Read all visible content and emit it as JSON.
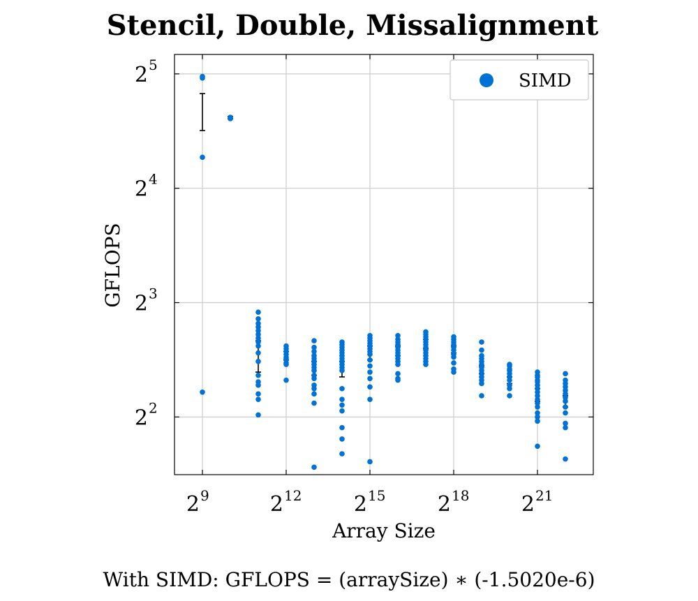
{
  "chart_data": {
    "type": "scatter",
    "title": "Stencil, Double, Missalignment",
    "xlabel": "Array Size",
    "ylabel": "GFLOPS",
    "x_scale": "log2",
    "y_scale": "log2",
    "xlim": [
      256,
      8388608
    ],
    "ylim": [
      2.82,
      36.0
    ],
    "grid": true,
    "legend_position": "top-right",
    "x_ticks": [
      {
        "base": "2",
        "exp": "9",
        "value": 512
      },
      {
        "base": "2",
        "exp": "12",
        "value": 4096
      },
      {
        "base": "2",
        "exp": "15",
        "value": 32768
      },
      {
        "base": "2",
        "exp": "18",
        "value": 262144
      },
      {
        "base": "2",
        "exp": "21",
        "value": 2097152
      }
    ],
    "y_ticks": [
      {
        "base": "2",
        "exp": "2",
        "value": 4
      },
      {
        "base": "2",
        "exp": "3",
        "value": 8
      },
      {
        "base": "2",
        "exp": "4",
        "value": 16
      },
      {
        "base": "2",
        "exp": "5",
        "value": 32
      }
    ],
    "series": [
      {
        "name": "SIMD",
        "color": "#0072d6",
        "points": [
          {
            "x": 512,
            "y": [
              31.5,
              31.2,
              19.3,
              4.65
            ]
          },
          {
            "x": 1024,
            "y": [
              24.6,
              24.4
            ]
          },
          {
            "x": 2048,
            "y": [
              7.55,
              7.25,
              7.05,
              6.9,
              6.75,
              6.6,
              6.45,
              6.3,
              6.15,
              5.9,
              5.6,
              5.15,
              4.95,
              4.85,
              4.6,
              4.45,
              4.05
            ]
          },
          {
            "x": 4096,
            "y": [
              6.15,
              6.05,
              5.95,
              5.85,
              5.75,
              5.7,
              5.65,
              5.55,
              5.5,
              5.0
            ]
          },
          {
            "x": 8192,
            "y": [
              6.35,
              6.1,
              5.95,
              5.8,
              5.7,
              5.6,
              5.5,
              5.4,
              5.3,
              5.15,
              5.05,
              4.85,
              4.75,
              4.6,
              4.35,
              2.95
            ]
          },
          {
            "x": 16384,
            "y": [
              6.3,
              6.2,
              6.1,
              6.0,
              5.9,
              5.8,
              5.7,
              5.6,
              5.5,
              5.4,
              5.3,
              4.75,
              4.45,
              4.3,
              4.15,
              3.75,
              3.5,
              3.2
            ]
          },
          {
            "x": 32768,
            "y": [
              6.55,
              6.45,
              6.35,
              6.25,
              6.15,
              6.05,
              5.95,
              5.85,
              5.65,
              5.45,
              5.25,
              5.05,
              4.8,
              4.45,
              3.05
            ]
          },
          {
            "x": 65536,
            "y": [
              6.55,
              6.4,
              6.3,
              6.2,
              6.1,
              6.0,
              5.9,
              5.8,
              5.7,
              5.6,
              5.5,
              5.2,
              5.05,
              5.0
            ]
          },
          {
            "x": 131072,
            "y": [
              6.7,
              6.6,
              6.5,
              6.4,
              6.3,
              6.2,
              6.1,
              6.0,
              5.9,
              5.8,
              5.7,
              5.6,
              5.5
            ]
          },
          {
            "x": 262144,
            "y": [
              6.5,
              6.4,
              6.3,
              6.2,
              6.1,
              6.0,
              5.85,
              5.75,
              5.55,
              5.35,
              5.25
            ]
          },
          {
            "x": 524288,
            "y": [
              6.3,
              6.0,
              5.8,
              5.7,
              5.6,
              5.5,
              5.4,
              5.3,
              5.2,
              5.1,
              5.0,
              4.9,
              4.55
            ]
          },
          {
            "x": 1048576,
            "y": [
              5.5,
              5.45,
              5.35,
              5.3,
              5.2,
              5.1,
              5.0,
              4.85,
              4.75,
              4.55
            ]
          },
          {
            "x": 2097152,
            "y": [
              5.25,
              5.15,
              5.1,
              5.0,
              4.95,
              4.85,
              4.75,
              4.65,
              4.55,
              4.45,
              4.35,
              4.25,
              4.1,
              4.0,
              3.9,
              3.35
            ]
          },
          {
            "x": 4194304,
            "y": [
              5.2,
              5.0,
              4.9,
              4.8,
              4.7,
              4.6,
              4.5,
              4.4,
              4.25,
              4.1,
              3.85,
              3.75,
              3.1
            ]
          }
        ],
        "error_bars": [
          {
            "x": 512,
            "low": 22.7,
            "high": 28.4
          },
          {
            "x": 1024,
            "low": 24.4,
            "high": 24.7
          },
          {
            "x": 2048,
            "low": 5.25,
            "high": 6.35
          },
          {
            "x": 4096,
            "low": 5.65,
            "high": 5.95
          },
          {
            "x": 8192,
            "low": 5.15,
            "high": 5.6
          },
          {
            "x": 16384,
            "low": 5.1,
            "high": 5.6
          },
          {
            "x": 32768,
            "low": 5.65,
            "high": 6.15
          },
          {
            "x": 65536,
            "low": 5.8,
            "high": 6.15
          },
          {
            "x": 131072,
            "low": 6.05,
            "high": 6.4
          },
          {
            "x": 262144,
            "low": 5.9,
            "high": 6.15
          },
          {
            "x": 524288,
            "low": 5.2,
            "high": 5.45
          },
          {
            "x": 1048576,
            "low": 4.9,
            "high": 5.1
          },
          {
            "x": 2097152,
            "low": 4.4,
            "high": 4.75
          },
          {
            "x": 4194304,
            "low": 4.25,
            "high": 4.55
          }
        ]
      }
    ],
    "legend": [
      {
        "label": "SIMD",
        "marker_color": "#0072d6"
      }
    ],
    "footnote": "With SIMD:  GFLOPS = (arraySize) ∗ (-1.5020e-6)"
  }
}
